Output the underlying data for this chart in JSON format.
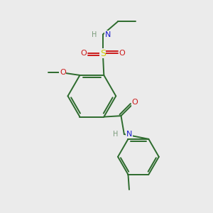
{
  "bg_color": "#ebebeb",
  "bond_color": "#2d6b2d",
  "atom_colors": {
    "C": "#2d6b2d",
    "H": "#7a9a7a",
    "N": "#1a1acc",
    "O": "#cc1a1a",
    "S": "#cccc00"
  },
  "figsize": [
    3.0,
    3.0
  ],
  "dpi": 100
}
